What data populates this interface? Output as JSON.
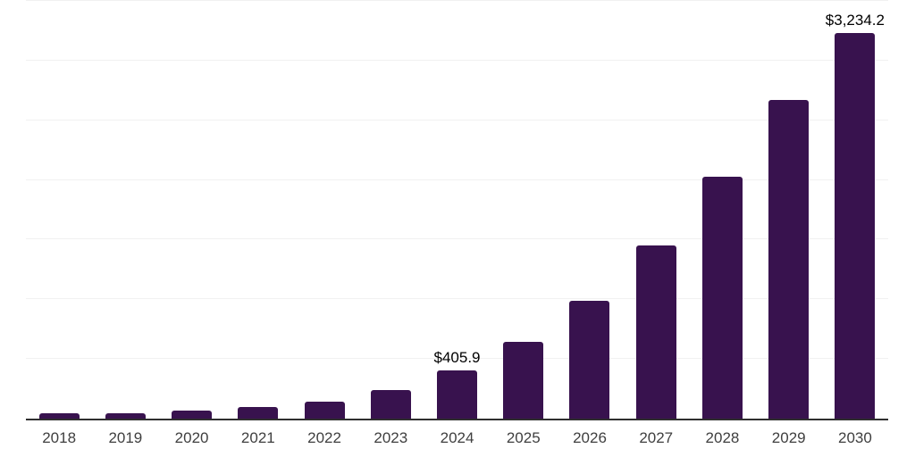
{
  "chart_data": {
    "type": "bar",
    "title": "",
    "xlabel": "",
    "ylabel": "",
    "categories": [
      "2018",
      "2019",
      "2020",
      "2021",
      "2022",
      "2023",
      "2024",
      "2025",
      "2026",
      "2027",
      "2028",
      "2029",
      "2030"
    ],
    "values": [
      45,
      48,
      69,
      94,
      143,
      237,
      405.9,
      643,
      990,
      1450,
      2030,
      2668,
      3234.2
    ],
    "data_labels": {
      "2024": "$405.9",
      "2030": "$3,234.2"
    },
    "ylim": [
      0,
      3500
    ],
    "gridline_step": 500,
    "grid": true,
    "legend_position": "none"
  },
  "style": {
    "bar_color": "#38124E",
    "axis_line_color": "#2F2F2F",
    "gridline_color": "#F1F1F1",
    "tick_label_color": "#3F3F3F",
    "data_label_color": "#000000",
    "background_color": "#FFFFFF"
  }
}
